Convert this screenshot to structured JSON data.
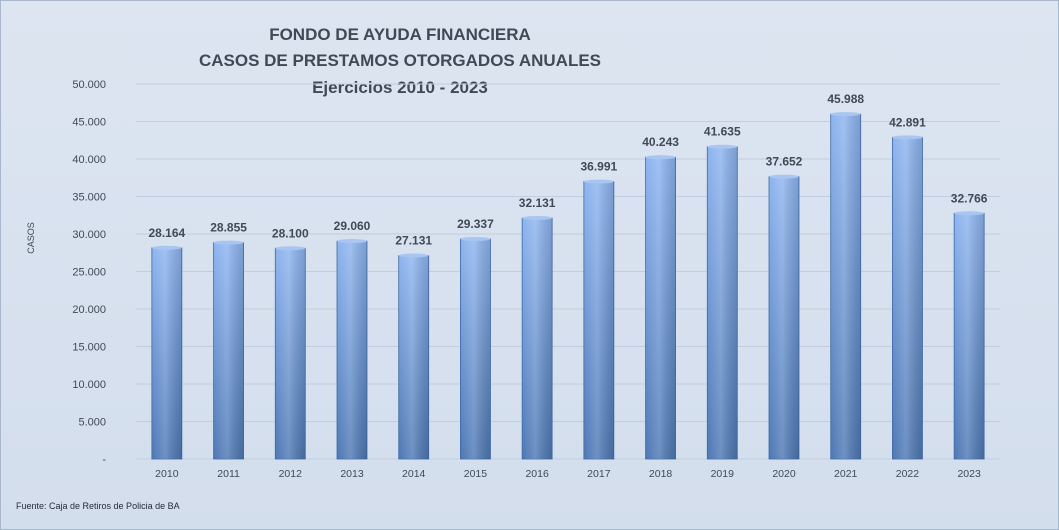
{
  "title_lines": [
    "FONDO DE AYUDA FINANCIERA",
    "CASOS DE PRESTAMOS  OTORGADOS  ANUALES",
    "Ejercicios  2010 - 2023"
  ],
  "source": "Fuente: Caja de Retiros de Policia de BA",
  "colors": {
    "bar_light": "#8db4ef",
    "bar_dark": "#4e78b4",
    "gridline": "#c2cedf",
    "text": "#404a56"
  },
  "chart_data": {
    "type": "bar",
    "title": "FONDO DE AYUDA FINANCIERA / CASOS DE PRESTAMOS  OTORGADOS  ANUALES / Ejercicios  2010 - 2023",
    "xlabel": "",
    "ylabel": "CASOS",
    "categories": [
      "2010",
      "2011",
      "2012",
      "2013",
      "2014",
      "2015",
      "2016",
      "2017",
      "2018",
      "2019",
      "2020",
      "2021",
      "2022",
      "2023"
    ],
    "values": [
      28164,
      28855,
      28100,
      29060,
      27131,
      29337,
      32131,
      36991,
      40243,
      41635,
      37652,
      45988,
      42891,
      32766
    ],
    "value_labels": [
      "28.164",
      "28.855",
      "28.100",
      "29.060",
      "27.131",
      "29.337",
      "32.131",
      "36.991",
      "40.243",
      "41.635",
      "37.652",
      "45.988",
      "42.891",
      "32.766"
    ],
    "ylim": [
      0,
      50000
    ],
    "yticks": [
      0,
      5000,
      10000,
      15000,
      20000,
      25000,
      30000,
      35000,
      40000,
      45000,
      50000
    ],
    "ytick_labels": [
      "-",
      "5.000",
      "10.000",
      "15.000",
      "20.000",
      "25.000",
      "30.000",
      "35.000",
      "40.000",
      "45.000",
      "50.000"
    ],
    "grid": true,
    "legend": "none"
  }
}
